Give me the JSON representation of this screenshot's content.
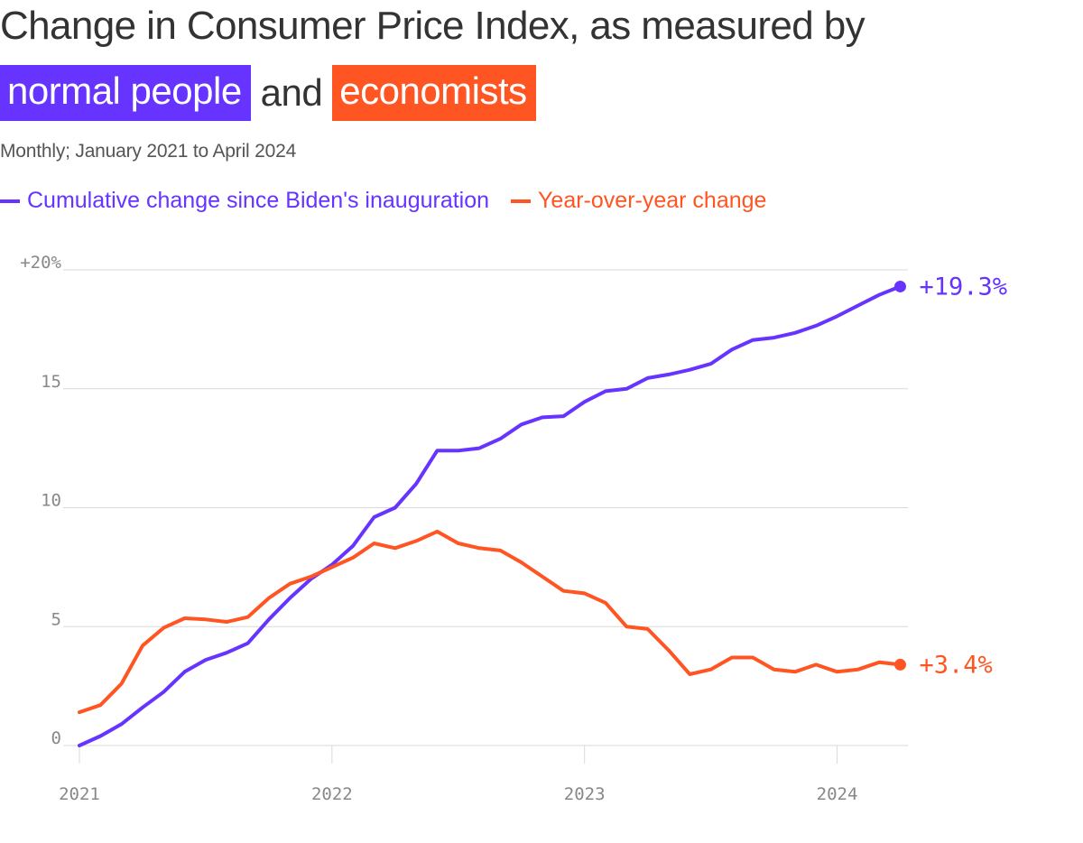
{
  "title": {
    "line1": "Change in Consumer Price Index, as measured by",
    "highlight1": "normal people",
    "connector": "and",
    "highlight2": "economists"
  },
  "subtitle": "Monthly; January 2021 to April 2024",
  "colors": {
    "purple": "#6633ff",
    "orange": "#ff5522",
    "grid": "#d9d9d9",
    "text": "#333333",
    "tick": "#888888"
  },
  "chart_data": {
    "type": "line",
    "title": "Change in Consumer Price Index, as measured by normal people and economists",
    "subtitle": "Monthly; January 2021 to April 2024",
    "x": [
      "2021-01",
      "2021-02",
      "2021-03",
      "2021-04",
      "2021-05",
      "2021-06",
      "2021-07",
      "2021-08",
      "2021-09",
      "2021-10",
      "2021-11",
      "2021-12",
      "2022-01",
      "2022-02",
      "2022-03",
      "2022-04",
      "2022-05",
      "2022-06",
      "2022-07",
      "2022-08",
      "2022-09",
      "2022-10",
      "2022-11",
      "2022-12",
      "2023-01",
      "2023-02",
      "2023-03",
      "2023-04",
      "2023-05",
      "2023-06",
      "2023-07",
      "2023-08",
      "2023-09",
      "2023-10",
      "2023-11",
      "2023-12",
      "2024-01",
      "2024-02",
      "2024-03",
      "2024-04"
    ],
    "series": [
      {
        "name": "Cumulative change since Biden's inauguration",
        "color": "#6633ff",
        "values": [
          0.0,
          0.4,
          0.9,
          1.6,
          2.25,
          3.1,
          3.6,
          3.9,
          4.3,
          5.3,
          6.2,
          7.0,
          7.6,
          8.4,
          9.6,
          10.0,
          11.0,
          12.4,
          12.4,
          12.5,
          12.9,
          13.5,
          13.8,
          13.85,
          14.45,
          14.9,
          15.0,
          15.45,
          15.6,
          15.8,
          16.05,
          16.65,
          17.05,
          17.15,
          17.35,
          17.65,
          18.05,
          18.5,
          18.95,
          19.3
        ],
        "end_label": "+19.3%"
      },
      {
        "name": "Year-over-year change",
        "color": "#ff5522",
        "values": [
          1.4,
          1.7,
          2.6,
          4.2,
          4.95,
          5.35,
          5.3,
          5.2,
          5.4,
          6.2,
          6.8,
          7.1,
          7.5,
          7.9,
          8.5,
          8.3,
          8.6,
          9.0,
          8.5,
          8.3,
          8.2,
          7.7,
          7.1,
          6.5,
          6.4,
          6.0,
          5.0,
          4.9,
          4.0,
          3.0,
          3.2,
          3.7,
          3.7,
          3.2,
          3.1,
          3.4,
          3.1,
          3.2,
          3.5,
          3.4
        ],
        "end_label": "+3.4%"
      }
    ],
    "y_ticks": [
      {
        "value": 0,
        "label": "0"
      },
      {
        "value": 5,
        "label": "5"
      },
      {
        "value": 10,
        "label": "10"
      },
      {
        "value": 15,
        "label": "15"
      },
      {
        "value": 20,
        "label": "+20%"
      }
    ],
    "x_ticks": [
      {
        "value": "2021-01",
        "label": "2021"
      },
      {
        "value": "2022-01",
        "label": "2022"
      },
      {
        "value": "2023-01",
        "label": "2023"
      },
      {
        "value": "2024-01",
        "label": "2024"
      }
    ],
    "ylim": [
      0,
      20
    ],
    "grid": true,
    "legend_position": "top-left"
  }
}
